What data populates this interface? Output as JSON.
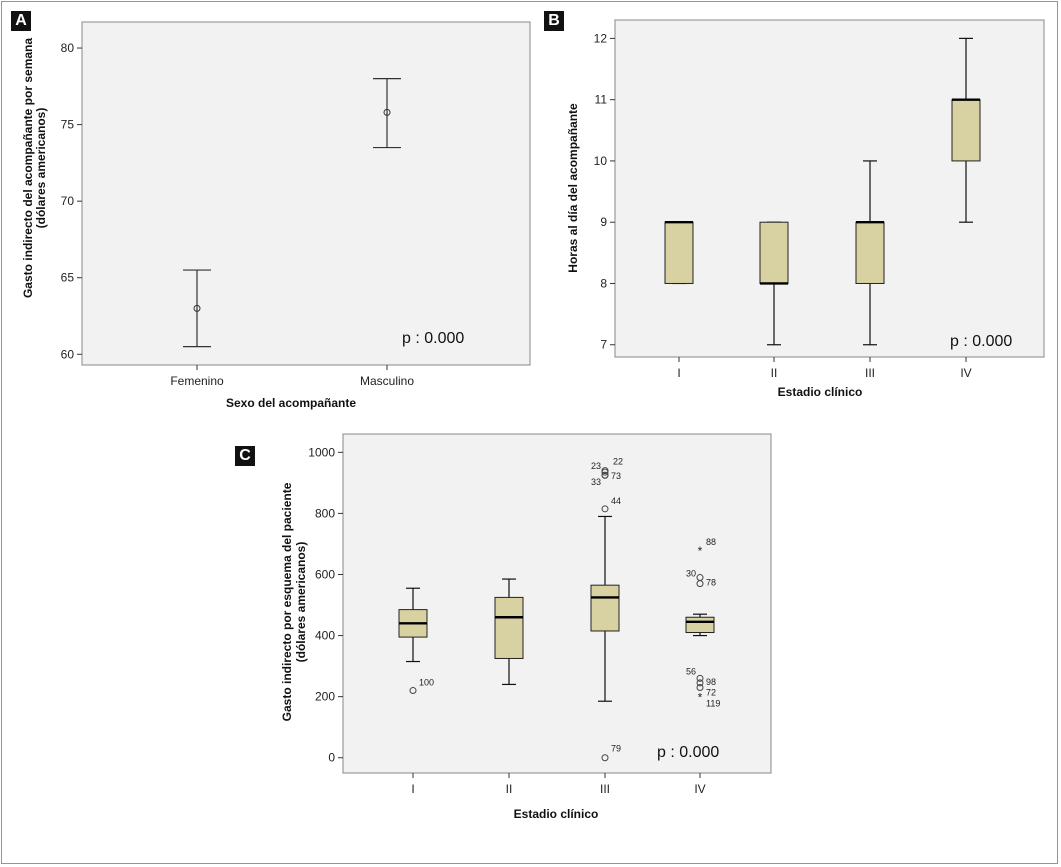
{
  "chart_data": [
    {
      "panel": "A",
      "type": "errorbar",
      "categories": [
        "Femenino",
        "Masculino"
      ],
      "series": [
        {
          "category": "Femenino",
          "mean": 63.0,
          "lower": 60.5,
          "upper": 65.5
        },
        {
          "category": "Masculino",
          "mean": 75.8,
          "lower": 73.5,
          "upper": 78.0
        }
      ],
      "yticks": [
        60,
        65,
        70,
        75,
        80
      ],
      "ylim": [
        59.3,
        81.7
      ],
      "xlabel": "Sexo del acompañante",
      "ylabel_line1": "Gasto indirecto del acompañante por semana",
      "ylabel_line2": "(dólares americanos)",
      "annotation": "p : 0.000",
      "plot_bg": "#f2f2f2"
    },
    {
      "panel": "B",
      "type": "boxplot",
      "categories": [
        "I",
        "II",
        "III",
        "IV"
      ],
      "boxes": [
        {
          "category": "I",
          "min": 8,
          "q1": 8,
          "median": 9,
          "q3": 9,
          "max": 9
        },
        {
          "category": "II",
          "min": 7,
          "q1": 8,
          "median": 8,
          "q3": 9,
          "max": 9
        },
        {
          "category": "III",
          "min": 7,
          "q1": 8,
          "median": 9,
          "q3": 9,
          "max": 10
        },
        {
          "category": "IV",
          "min": 9,
          "q1": 10,
          "median": 11,
          "q3": 11,
          "max": 12
        }
      ],
      "yticks": [
        7,
        8,
        9,
        10,
        11,
        12
      ],
      "ylim": [
        6.8,
        12.3
      ],
      "xlabel": "Estadio clínico",
      "ylabel": "Horas al día del acompañante",
      "annotation": "p : 0.000",
      "box_color": "#d8d1a2",
      "plot_bg": "#f2f2f2"
    },
    {
      "panel": "C",
      "type": "boxplot",
      "categories": [
        "I",
        "II",
        "III",
        "IV"
      ],
      "boxes": [
        {
          "category": "I",
          "min": 315,
          "q1": 395,
          "median": 440,
          "q3": 485,
          "max": 555,
          "outliers": [
            {
              "value": 220,
              "label": "100",
              "marker": "circle"
            }
          ]
        },
        {
          "category": "II",
          "min": 240,
          "q1": 325,
          "median": 460,
          "q3": 525,
          "max": 585,
          "outliers": []
        },
        {
          "category": "III",
          "min": 185,
          "q1": 415,
          "median": 525,
          "q3": 565,
          "max": 790,
          "outliers": [
            {
              "value": 940,
              "label": "22",
              "marker": "circle"
            },
            {
              "value": 935,
              "label": "23",
              "marker": "circle"
            },
            {
              "value": 925,
              "label": "73",
              "marker": "circle"
            },
            {
              "value": 925,
              "label": "33",
              "marker": "circle"
            },
            {
              "value": 815,
              "label": "44",
              "marker": "circle"
            },
            {
              "value": 0,
              "label": "79",
              "marker": "circle"
            }
          ]
        },
        {
          "category": "IV",
          "min": 400,
          "q1": 410,
          "median": 445,
          "q3": 460,
          "max": 470,
          "outliers": [
            {
              "value": 680,
              "label": "88",
              "marker": "star"
            },
            {
              "value": 590,
              "label": "30",
              "marker": "circle"
            },
            {
              "value": 570,
              "label": "78",
              "marker": "circle"
            },
            {
              "value": 260,
              "label": "56",
              "marker": "circle"
            },
            {
              "value": 245,
              "label": "98",
              "marker": "circle"
            },
            {
              "value": 230,
              "label": "72",
              "marker": "circle"
            },
            {
              "value": 200,
              "label": "119",
              "marker": "star"
            }
          ]
        }
      ],
      "yticks": [
        0,
        200,
        400,
        600,
        800,
        1000
      ],
      "ylim": [
        -50,
        1060
      ],
      "xlabel": "Estadio clínico",
      "ylabel_line1": "Gasto indirecto por esquema del paciente",
      "ylabel_line2": "(dólares americanos)",
      "annotation": "p : 0.000",
      "box_color": "#d8d1a2",
      "plot_bg": "#f2f2f2"
    }
  ],
  "panel_labels": {
    "a": "A",
    "b": "B",
    "c": "C"
  }
}
